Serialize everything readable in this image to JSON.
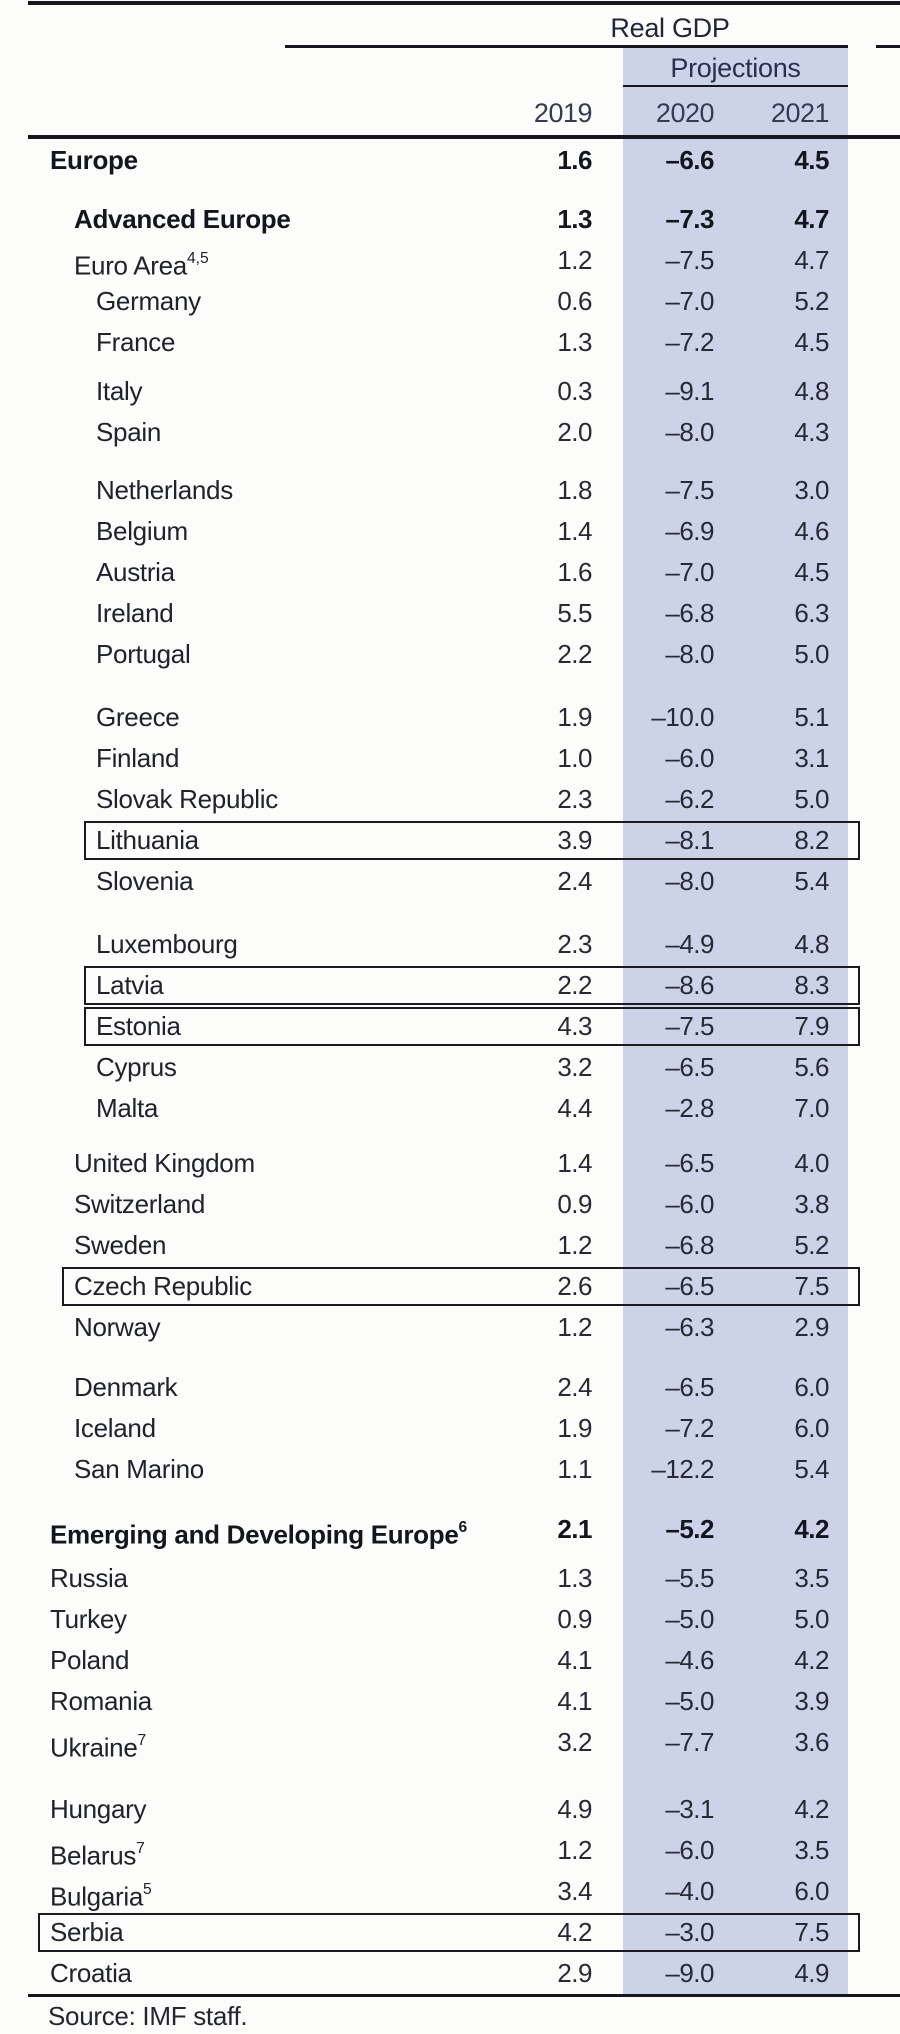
{
  "table": {
    "title": "Real GDP",
    "projections_label": "Projections",
    "columns": [
      "2019",
      "2020",
      "2021"
    ],
    "source": "Source: IMF staff.",
    "colors": {
      "band": "#ccd3e8",
      "rule": "#16161e",
      "text": "#20222e"
    },
    "rows": [
      {
        "label": "Europe",
        "indent": 0,
        "bold": true,
        "boxed": false,
        "gap": 0,
        "values": [
          "1.6",
          "–6.6",
          "4.5"
        ]
      },
      {
        "label": "Advanced Europe",
        "indent": 1,
        "bold": true,
        "boxed": false,
        "gap": 18,
        "values": [
          "1.3",
          "–7.3",
          "4.7"
        ]
      },
      {
        "label": "Euro Area",
        "sup": "4,5",
        "indent": 1,
        "bold": false,
        "boxed": false,
        "gap": 0,
        "values": [
          "1.2",
          "–7.5",
          "4.7"
        ]
      },
      {
        "label": "Germany",
        "indent": 2,
        "bold": false,
        "boxed": false,
        "gap": 0,
        "values": [
          "0.6",
          "–7.0",
          "5.2"
        ]
      },
      {
        "label": "France",
        "indent": 2,
        "bold": false,
        "boxed": false,
        "gap": 0,
        "values": [
          "1.3",
          "–7.2",
          "4.5"
        ]
      },
      {
        "label": "Italy",
        "indent": 2,
        "bold": false,
        "boxed": false,
        "gap": 8,
        "values": [
          "0.3",
          "–9.1",
          "4.8"
        ]
      },
      {
        "label": "Spain",
        "indent": 2,
        "bold": false,
        "boxed": false,
        "gap": 0,
        "values": [
          "2.0",
          "–8.0",
          "4.3"
        ]
      },
      {
        "label": "Netherlands",
        "indent": 2,
        "bold": false,
        "boxed": false,
        "gap": 17,
        "values": [
          "1.8",
          "–7.5",
          "3.0"
        ]
      },
      {
        "label": "Belgium",
        "indent": 2,
        "bold": false,
        "boxed": false,
        "gap": 0,
        "values": [
          "1.4",
          "–6.9",
          "4.6"
        ]
      },
      {
        "label": "Austria",
        "indent": 2,
        "bold": false,
        "boxed": false,
        "gap": 0,
        "values": [
          "1.6",
          "–7.0",
          "4.5"
        ]
      },
      {
        "label": "Ireland",
        "indent": 2,
        "bold": false,
        "boxed": false,
        "gap": 0,
        "values": [
          "5.5",
          "–6.8",
          "6.3"
        ]
      },
      {
        "label": "Portugal",
        "indent": 2,
        "bold": false,
        "boxed": false,
        "gap": 0,
        "values": [
          "2.2",
          "–8.0",
          "5.0"
        ]
      },
      {
        "label": "Greece",
        "indent": 2,
        "bold": false,
        "boxed": false,
        "gap": 22,
        "values": [
          "1.9",
          "–10.0",
          "5.1"
        ]
      },
      {
        "label": "Finland",
        "indent": 2,
        "bold": false,
        "boxed": false,
        "gap": 0,
        "values": [
          "1.0",
          "–6.0",
          "3.1"
        ]
      },
      {
        "label": "Slovak Republic",
        "indent": 2,
        "bold": false,
        "boxed": false,
        "gap": 0,
        "values": [
          "2.3",
          "–6.2",
          "5.0"
        ]
      },
      {
        "label": "Lithuania",
        "indent": 2,
        "bold": false,
        "boxed": true,
        "gap": 0,
        "values": [
          "3.9",
          "–8.1",
          "8.2"
        ]
      },
      {
        "label": "Slovenia",
        "indent": 2,
        "bold": false,
        "boxed": false,
        "gap": 0,
        "values": [
          "2.4",
          "–8.0",
          "5.4"
        ]
      },
      {
        "label": "Luxembourg",
        "indent": 2,
        "bold": false,
        "boxed": false,
        "gap": 22,
        "values": [
          "2.3",
          "–4.9",
          "4.8"
        ]
      },
      {
        "label": "Latvia",
        "indent": 2,
        "bold": false,
        "boxed": true,
        "gap": 0,
        "values": [
          "2.2",
          "–8.6",
          "8.3"
        ]
      },
      {
        "label": "Estonia",
        "indent": 2,
        "bold": false,
        "boxed": true,
        "gap": 0,
        "values": [
          "4.3",
          "–7.5",
          "7.9"
        ]
      },
      {
        "label": "Cyprus",
        "indent": 2,
        "bold": false,
        "boxed": false,
        "gap": 0,
        "values": [
          "3.2",
          "–6.5",
          "5.6"
        ]
      },
      {
        "label": "Malta",
        "indent": 2,
        "bold": false,
        "boxed": false,
        "gap": 0,
        "values": [
          "4.4",
          "–2.8",
          "7.0"
        ]
      },
      {
        "label": "United Kingdom",
        "indent": 1,
        "bold": false,
        "boxed": false,
        "gap": 14,
        "values": [
          "1.4",
          "–6.5",
          "4.0"
        ]
      },
      {
        "label": "Switzerland",
        "indent": 1,
        "bold": false,
        "boxed": false,
        "gap": 0,
        "values": [
          "0.9",
          "–6.0",
          "3.8"
        ]
      },
      {
        "label": "Sweden",
        "indent": 1,
        "bold": false,
        "boxed": false,
        "gap": 0,
        "values": [
          "1.2",
          "–6.8",
          "5.2"
        ]
      },
      {
        "label": "Czech Republic",
        "indent": 1,
        "bold": false,
        "boxed": true,
        "gap": 0,
        "values": [
          "2.6",
          "–6.5",
          "7.5"
        ]
      },
      {
        "label": "Norway",
        "indent": 1,
        "bold": false,
        "boxed": false,
        "gap": 0,
        "values": [
          "1.2",
          "–6.3",
          "2.9"
        ]
      },
      {
        "label": "Denmark",
        "indent": 1,
        "bold": false,
        "boxed": false,
        "gap": 19,
        "values": [
          "2.4",
          "–6.5",
          "6.0"
        ]
      },
      {
        "label": "Iceland",
        "indent": 1,
        "bold": false,
        "boxed": false,
        "gap": 0,
        "values": [
          "1.9",
          "–7.2",
          "6.0"
        ]
      },
      {
        "label": "San Marino",
        "indent": 1,
        "bold": false,
        "boxed": false,
        "gap": 0,
        "values": [
          "1.1",
          "–12.2",
          "5.4"
        ]
      },
      {
        "label": "Emerging and Developing Europe",
        "sup": "6",
        "indent": 0,
        "bold": true,
        "boxed": false,
        "gap": 19,
        "values": [
          "2.1",
          "–5.2",
          "4.2"
        ]
      },
      {
        "label": "Russia",
        "indent": 0,
        "bold": false,
        "boxed": false,
        "gap": 8,
        "values": [
          "1.3",
          "–5.5",
          "3.5"
        ]
      },
      {
        "label": "Turkey",
        "indent": 0,
        "bold": false,
        "boxed": false,
        "gap": 0,
        "values": [
          "0.9",
          "–5.0",
          "5.0"
        ]
      },
      {
        "label": "Poland",
        "indent": 0,
        "bold": false,
        "boxed": false,
        "gap": 0,
        "values": [
          "4.1",
          "–4.6",
          "4.2"
        ]
      },
      {
        "label": "Romania",
        "indent": 0,
        "bold": false,
        "boxed": false,
        "gap": 0,
        "values": [
          "4.1",
          "–5.0",
          "3.9"
        ]
      },
      {
        "label": "Ukraine",
        "sup": "7",
        "indent": 0,
        "bold": false,
        "boxed": false,
        "gap": 0,
        "values": [
          "3.2",
          "–7.7",
          "3.6"
        ]
      },
      {
        "label": "Hungary",
        "indent": 0,
        "bold": false,
        "boxed": false,
        "gap": 26,
        "values": [
          "4.9",
          "–3.1",
          "4.2"
        ]
      },
      {
        "label": "Belarus",
        "sup": "7",
        "indent": 0,
        "bold": false,
        "boxed": false,
        "gap": 0,
        "values": [
          "1.2",
          "–6.0",
          "3.5"
        ]
      },
      {
        "label": "Bulgaria",
        "sup": "5",
        "indent": 0,
        "bold": false,
        "boxed": false,
        "gap": 0,
        "values": [
          "3.4",
          "–4.0",
          "6.0"
        ]
      },
      {
        "label": "Serbia",
        "indent": 0,
        "bold": false,
        "boxed": true,
        "gap": 0,
        "values": [
          "4.2",
          "–3.0",
          "7.5"
        ]
      },
      {
        "label": "Croatia",
        "indent": 0,
        "bold": false,
        "boxed": false,
        "gap": 0,
        "values": [
          "2.9",
          "–9.0",
          "4.9"
        ]
      }
    ]
  }
}
